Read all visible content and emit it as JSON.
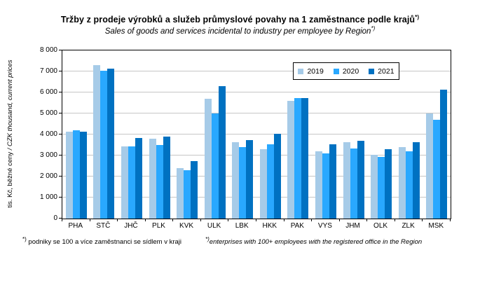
{
  "title": {
    "text": "Tržby z prodeje výrobků a služeb průmyslové povahy na 1 zaměstnance podle krajů",
    "marker": "*)"
  },
  "subtitle": {
    "text": "Sales of goods and services incidental to industry per employee by Region",
    "marker": "*)"
  },
  "y_axis": {
    "label_cs": "tis. Kč, běžné ceny",
    "label_en": "/ CZK thousand, current prices",
    "tick_labels": [
      "0",
      "1 000",
      "2 000",
      "3 000",
      "4 000",
      "5 000",
      "6 000",
      "7 000",
      "8 000"
    ]
  },
  "legend": {
    "entries": [
      "2019",
      "2020",
      "2021"
    ]
  },
  "footnotes": {
    "left": {
      "marker": "*)",
      "text": "podniky se 100 a více zaměstnanci se sídlem v kraji"
    },
    "right": {
      "marker": "*)",
      "text": "enterprises with 100+ employees with the registered office in the Region"
    }
  },
  "colors": {
    "series_2019": "#a6cbe8",
    "series_2020": "#29a8ff",
    "series_2021": "#0071c1",
    "gridline": "#c6c6c6",
    "axis": "#000000"
  },
  "chart_data": {
    "type": "bar",
    "title": "Tržby z prodeje výrobků a služeb průmyslové povahy na 1 zaměstnance podle krajů*)",
    "subtitle": "Sales of goods and services incidental to industry per employee by Region*)",
    "ylabel": "tis. Kč, běžné ceny / CZK thousand, current prices",
    "xlabel": "",
    "ylim": [
      0,
      8000
    ],
    "ytick_step": 1000,
    "grid": true,
    "legend_position": "top-right-inside",
    "categories": [
      "PHA",
      "STČ",
      "JHČ",
      "PLK",
      "KVK",
      "ULK",
      "LBK",
      "HKK",
      "PAK",
      "VYS",
      "JHM",
      "OLK",
      "ZLK",
      "MSK"
    ],
    "series": [
      {
        "name": "2019",
        "color": "#a6cbe8",
        "values": [
          4150,
          7300,
          3450,
          3800,
          2400,
          5700,
          3650,
          3300,
          5600,
          3200,
          3650,
          3050,
          3400,
          5000
        ]
      },
      {
        "name": "2020",
        "color": "#29a8ff",
        "values": [
          4200,
          7050,
          3450,
          3500,
          2300,
          5000,
          3400,
          3550,
          5750,
          3100,
          3350,
          2950,
          3200,
          4700
        ]
      },
      {
        "name": "2021",
        "color": "#0071c1",
        "values": [
          4150,
          7150,
          3850,
          3900,
          2750,
          6300,
          3750,
          4050,
          5750,
          3550,
          3700,
          3300,
          3650,
          6150
        ]
      }
    ]
  }
}
